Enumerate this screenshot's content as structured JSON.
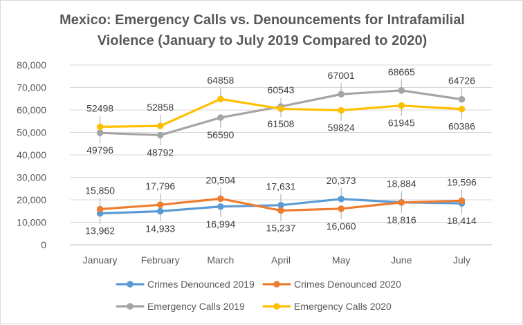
{
  "chart_data": {
    "type": "line",
    "title_lines": [
      "Mexico: Emergency Calls vs. Denouncements for Intrafamilial",
      "Violence (January to July 2019 Compared to 2020)"
    ],
    "categories": [
      "January",
      "February",
      "March",
      "April",
      "May",
      "June",
      "July"
    ],
    "ylim": [
      0,
      80000
    ],
    "yticks": [
      0,
      10000,
      20000,
      30000,
      40000,
      50000,
      60000,
      70000,
      80000
    ],
    "ytick_labels": [
      "0",
      "10,000",
      "20,000",
      "30,000",
      "40,000",
      "50,000",
      "60,000",
      "70,000",
      "80,000"
    ],
    "gridlines": true,
    "legend_position": "bottom",
    "xlabel": "",
    "ylabel": "",
    "series": [
      {
        "name": "Crimes Denounced 2019",
        "color": "#5b9bd5",
        "values": [
          13962,
          14933,
          16994,
          17631,
          20373,
          18884,
          18414
        ],
        "labels": [
          "13,962",
          "14,933",
          "16,994",
          "17,631",
          "20,373",
          "18,884",
          "18,414"
        ],
        "label_side": [
          "below",
          "below",
          "below",
          "above",
          "above",
          "above",
          "below"
        ]
      },
      {
        "name": "Crimes Denounced 2020",
        "color": "#ed7d31",
        "values": [
          15850,
          17796,
          20504,
          15237,
          16060,
          18816,
          19596
        ],
        "labels": [
          "15,850",
          "17,796",
          "20,504",
          "15,237",
          "16,060",
          "18,816",
          "19,596"
        ],
        "label_side": [
          "above",
          "above",
          "above",
          "below",
          "below",
          "below",
          "above"
        ]
      },
      {
        "name": "Emergency Calls 2019",
        "color": "#a5a5a5",
        "values": [
          49796,
          48792,
          56590,
          61508,
          67001,
          68665,
          64726
        ],
        "labels": [
          "49796",
          "48792",
          "56590",
          "61508",
          "67001",
          "68665",
          "64726"
        ],
        "label_side": [
          "below",
          "below",
          "below",
          "below",
          "above",
          "above",
          "above"
        ]
      },
      {
        "name": "Emergency Calls 2020",
        "color": "#ffc000",
        "values": [
          52498,
          52858,
          64858,
          60543,
          59824,
          61945,
          60386
        ],
        "labels": [
          "52498",
          "52858",
          "64858",
          "60543",
          "59824",
          "61945",
          "60386"
        ],
        "label_side": [
          "above",
          "above",
          "above",
          "above",
          "below",
          "below",
          "below"
        ]
      }
    ]
  }
}
